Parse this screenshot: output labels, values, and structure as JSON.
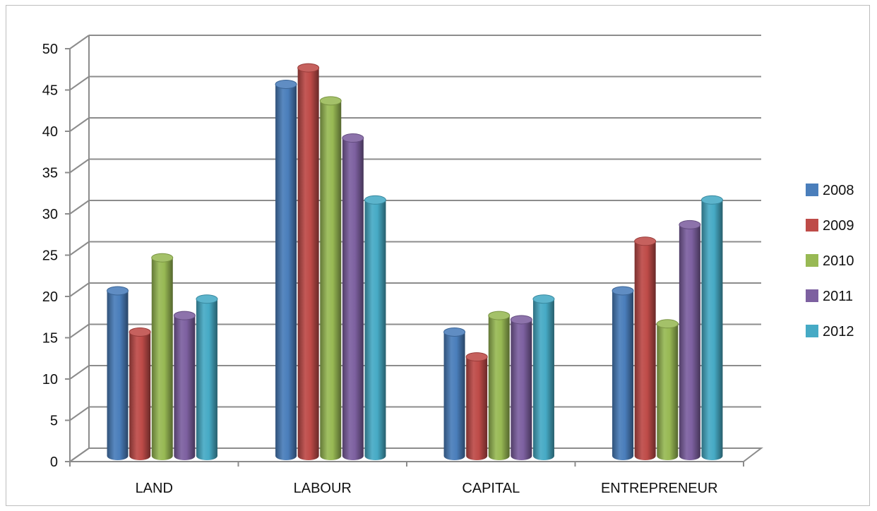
{
  "chart_data": {
    "type": "bar",
    "variant": "3d-clustered-column",
    "categories": [
      "LAND",
      "LABOUR",
      "CAPITAL",
      "ENTREPRENEUR"
    ],
    "series": [
      {
        "name": "2008",
        "color": "#4a7ebb",
        "values": [
          20,
          45,
          15,
          20
        ]
      },
      {
        "name": "2009",
        "color": "#be4b48",
        "values": [
          15,
          47,
          12,
          26
        ]
      },
      {
        "name": "2010",
        "color": "#98b954",
        "values": [
          24,
          43,
          17,
          16
        ]
      },
      {
        "name": "2011",
        "color": "#7d60a0",
        "values": [
          17,
          38.5,
          16.5,
          28
        ]
      },
      {
        "name": "2012",
        "color": "#46aac5",
        "values": [
          19,
          31,
          19,
          31
        ]
      }
    ],
    "yticks": [
      "0",
      "5",
      "10",
      "15",
      "20",
      "25",
      "30",
      "35",
      "40",
      "45",
      "50"
    ],
    "ylim": [
      0,
      50
    ],
    "title": "",
    "xlabel": "",
    "ylabel": "",
    "grid": true,
    "legend_position": "right"
  }
}
